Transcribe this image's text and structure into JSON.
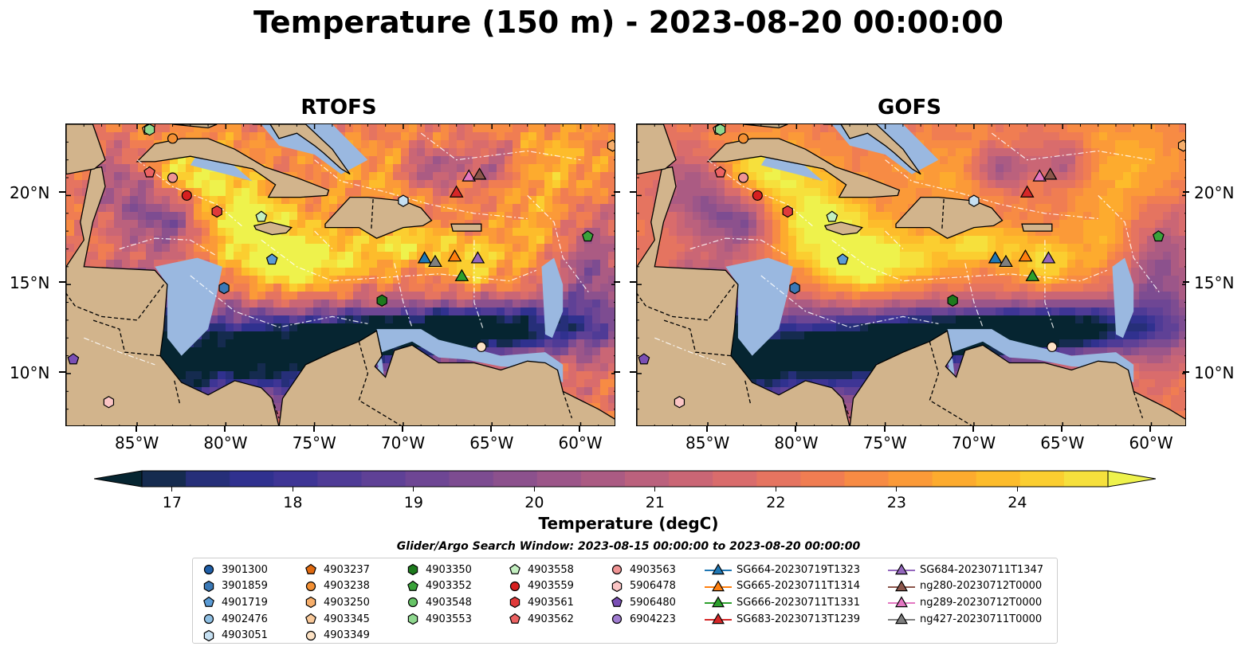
{
  "title": "Temperature (150 m) - 2023-08-20 00:00:00",
  "panels": [
    {
      "title": "RTOFS"
    },
    {
      "title": "GOFS"
    }
  ],
  "longitude_ticks": [
    "85°W",
    "80°W",
    "75°W",
    "70°W",
    "65°W",
    "60°W"
  ],
  "latitude_ticks": [
    "20°N",
    "15°N",
    "10°N"
  ],
  "colorbar": {
    "label": "Temperature (degC)",
    "ticks": [
      "17",
      "18",
      "19",
      "20",
      "21",
      "22",
      "23",
      "24"
    ],
    "min": 16.75,
    "max": 24.75,
    "colors": [
      "#062531",
      "#152b4f",
      "#262f79",
      "#30318f",
      "#3e3595",
      "#4f3b96",
      "#5f4196",
      "#6e4694",
      "#7d4c91",
      "#8c518d",
      "#9c5689",
      "#ab5b83",
      "#bb617d",
      "#ca6675",
      "#d96c6c",
      "#e57460",
      "#f07d52",
      "#f78b44",
      "#fb9a38",
      "#fdab2e",
      "#fdbc2b",
      "#fbce30",
      "#f6e03c",
      "#eef24c"
    ]
  },
  "colors": {
    "land": "#d2b48c",
    "shallow_water": "#9ab8e0",
    "deep_cold": "#062531",
    "warm": "#f08a3c",
    "hot": "#eef24c"
  },
  "legend": {
    "title": "Glider/Argo Search Window: 2023-08-15 00:00:00 to 2023-08-20 00:00:00",
    "columns": [
      [
        {
          "label": "3901300",
          "marker": "circle",
          "color": "#1f5fa8"
        },
        {
          "label": "3901859",
          "marker": "hexagon",
          "color": "#3a78b5"
        },
        {
          "label": "4901719",
          "marker": "pentagon",
          "color": "#5a9bd5"
        },
        {
          "label": "4902476",
          "marker": "circle",
          "color": "#8ebfe3"
        },
        {
          "label": "4903051",
          "marker": "hexagon",
          "color": "#c6e0f2"
        }
      ],
      [
        {
          "label": "4903237",
          "marker": "pentagon",
          "color": "#e06a10"
        },
        {
          "label": "4903238",
          "marker": "circle",
          "color": "#f39034"
        },
        {
          "label": "4903250",
          "marker": "hexagon",
          "color": "#f6ae6b"
        },
        {
          "label": "4903345",
          "marker": "pentagon",
          "color": "#f9c99a"
        },
        {
          "label": "4903349",
          "marker": "circle",
          "color": "#fde2c4"
        }
      ],
      [
        {
          "label": "4903350",
          "marker": "hexagon",
          "color": "#1d7a1d"
        },
        {
          "label": "4903352",
          "marker": "pentagon",
          "color": "#3aa23a"
        },
        {
          "label": "4903548",
          "marker": "circle",
          "color": "#66c466"
        },
        {
          "label": "4903553",
          "marker": "hexagon",
          "color": "#8fd88f"
        }
      ],
      [
        {
          "label": "4903558",
          "marker": "pentagon",
          "color": "#c3efc0"
        },
        {
          "label": "4903559",
          "marker": "circle",
          "color": "#d62020"
        },
        {
          "label": "4903561",
          "marker": "hexagon",
          "color": "#e03a3a"
        },
        {
          "label": "4903562",
          "marker": "pentagon",
          "color": "#ec6262"
        }
      ],
      [
        {
          "label": "4903563",
          "marker": "circle",
          "color": "#f09494"
        },
        {
          "label": "5906478",
          "marker": "hexagon",
          "color": "#fbc5c5"
        },
        {
          "label": "5906480",
          "marker": "pentagon",
          "color": "#7a4fb5"
        },
        {
          "label": "6904223",
          "marker": "circle",
          "color": "#a07cd0"
        }
      ],
      [
        {
          "label": "SG664-20230719T1323",
          "marker": "triangle-line",
          "color": "#1f77b4"
        },
        {
          "label": "SG665-20230711T1314",
          "marker": "triangle-line",
          "color": "#ff7f0e"
        },
        {
          "label": "SG666-20230711T1331",
          "marker": "triangle-line",
          "color": "#2ca02c"
        },
        {
          "label": "SG683-20230713T1239",
          "marker": "triangle-line",
          "color": "#d62728"
        }
      ],
      [
        {
          "label": "SG684-20230711T1347",
          "marker": "triangle-line",
          "color": "#9467bd"
        },
        {
          "label": "ng280-20230712T0000",
          "marker": "triangle-line",
          "color": "#8c564b"
        },
        {
          "label": "ng289-20230712T0000",
          "marker": "triangle-line",
          "color": "#e377c2"
        },
        {
          "label": "ng427-20230711T0000",
          "marker": "triangle-line",
          "color": "#7f7f7f"
        }
      ]
    ]
  },
  "map_extent": {
    "lon_min": -89,
    "lon_max": -58,
    "lat_min": 7,
    "lat_max": 24
  },
  "observations": [
    {
      "id": "4903345",
      "lon": -84.4,
      "lat": 23.7
    },
    {
      "id": "4903553",
      "lon": -84.3,
      "lat": 23.7
    },
    {
      "id": "4903238",
      "lon": -83.0,
      "lat": 23.2
    },
    {
      "id": "4903562",
      "lon": -84.3,
      "lat": 21.3
    },
    {
      "id": "4903563",
      "lon": -83.0,
      "lat": 21.0
    },
    {
      "id": "4903559",
      "lon": -82.2,
      "lat": 20.0
    },
    {
      "id": "4903561",
      "lon": -80.5,
      "lat": 19.1
    },
    {
      "id": "4903558",
      "lon": -78.0,
      "lat": 18.8
    },
    {
      "id": "4901719",
      "lon": -77.4,
      "lat": 16.4
    },
    {
      "id": "3901859",
      "lon": -80.1,
      "lat": 14.8
    },
    {
      "id": "4903051",
      "lon": -70.0,
      "lat": 19.7
    },
    {
      "id": "4903350",
      "lon": -71.2,
      "lat": 14.1
    },
    {
      "id": "4903352",
      "lon": -59.6,
      "lat": 17.7
    },
    {
      "id": "4903349",
      "lon": -65.6,
      "lat": 11.5
    },
    {
      "id": "5906480",
      "lon": -88.6,
      "lat": 10.8
    },
    {
      "id": "5906478",
      "lon": -86.6,
      "lat": 8.4
    },
    {
      "id": "4903250",
      "lon": -58.2,
      "lat": 22.8
    },
    {
      "id": "SG683-20230713T1239",
      "lon": -67.0,
      "lat": 20.2
    },
    {
      "id": "ng289-20230712T0000",
      "lon": -66.3,
      "lat": 21.1
    },
    {
      "id": "ng280-20230712T0000",
      "lon": -65.7,
      "lat": 21.2
    },
    {
      "id": "SG664-20230719T1323",
      "lon": -68.8,
      "lat": 16.5
    },
    {
      "id": "ng427-20230711T0000",
      "lon": -68.2,
      "lat": 16.3
    },
    {
      "id": "SG665-20230711T1314",
      "lon": -67.1,
      "lat": 16.6
    },
    {
      "id": "SG684-20230711T1347",
      "lon": -65.8,
      "lat": 16.5
    },
    {
      "id": "SG666-20230711T1331",
      "lon": -66.7,
      "lat": 15.5
    }
  ]
}
